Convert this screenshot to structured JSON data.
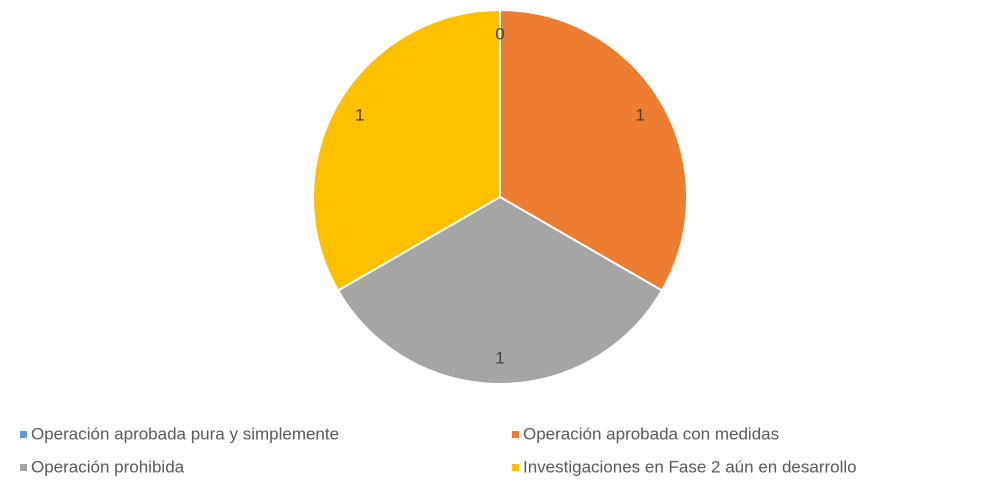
{
  "chart_data": {
    "type": "pie",
    "categories": [
      "Operación aprobada pura y simplemente",
      "Operación aprobada con medidas",
      "Operación prohibida",
      "Investigaciones en Fase 2 aún en desarrollo"
    ],
    "values": [
      0,
      1,
      1,
      1
    ],
    "colors": [
      "#5b9bd5",
      "#ed7d31",
      "#a5a5a5",
      "#ffc000"
    ],
    "legend": "bottom"
  }
}
